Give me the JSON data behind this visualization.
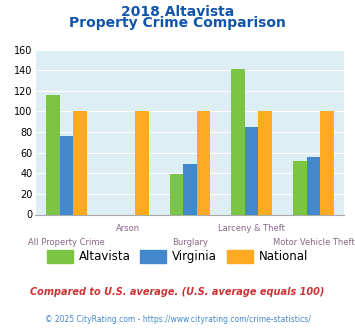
{
  "title_line1": "2018 Altavista",
  "title_line2": "Property Crime Comparison",
  "categories": [
    "All Property Crime",
    "Arson",
    "Burglary",
    "Larceny & Theft",
    "Motor Vehicle Theft"
  ],
  "altavista": [
    116,
    0,
    39,
    141,
    52
  ],
  "virginia": [
    76,
    0,
    49,
    85,
    56
  ],
  "national": [
    100,
    100,
    100,
    100,
    100
  ],
  "bar_width": 0.22,
  "colors": {
    "altavista": "#7cc444",
    "virginia": "#4488cc",
    "national": "#ffaa22"
  },
  "ylim": [
    0,
    160
  ],
  "yticks": [
    0,
    20,
    40,
    60,
    80,
    100,
    120,
    140,
    160
  ],
  "title_color": "#1155aa",
  "xlabel_color": "#886688",
  "legend_labels": [
    "Altavista",
    "Virginia",
    "National"
  ],
  "footnote1": "Compared to U.S. average. (U.S. average equals 100)",
  "footnote2": "© 2025 CityRating.com - https://www.cityrating.com/crime-statistics/",
  "footnote1_color": "#cc3333",
  "footnote2_color": "#4488cc",
  "bg_color": "#ddeef5",
  "fig_bg": "#ffffff",
  "xlabel_upper": [
    "Arson",
    "Larceny & Theft"
  ],
  "xlabel_lower": [
    "All Property Crime",
    "Burglary",
    "Motor Vehicle Theft"
  ],
  "xlabel_upper_pos": [
    1,
    3
  ],
  "xlabel_lower_pos": [
    0,
    2,
    4
  ]
}
